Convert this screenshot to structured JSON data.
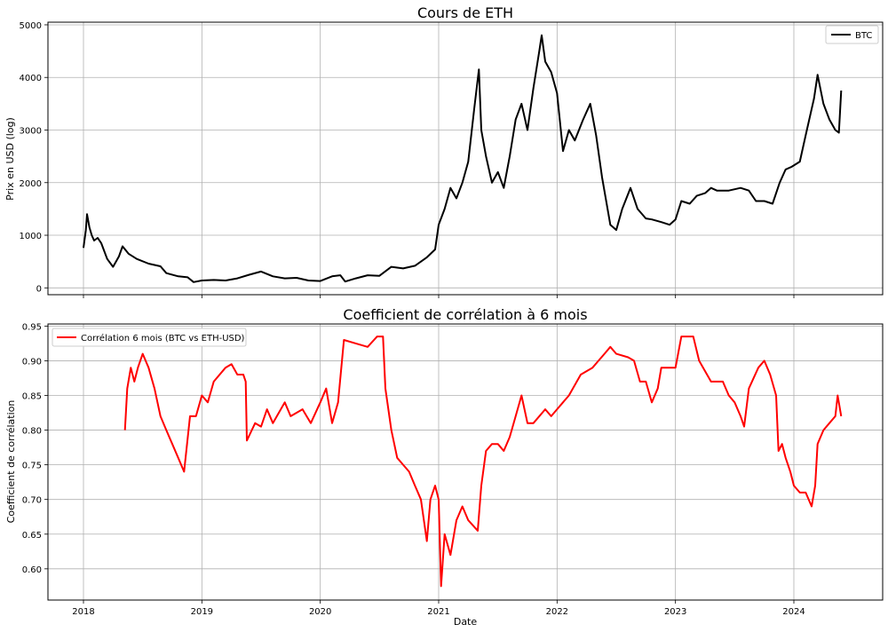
{
  "chart_data": [
    {
      "type": "line",
      "title": "Cours de ETH",
      "xlabel": "",
      "ylabel": "Prix en USD (log)",
      "xlim": [
        2017.7,
        2024.75
      ],
      "ylim": [
        -130,
        5050
      ],
      "yticks": [
        0,
        1000,
        2000,
        3000,
        4000,
        5000
      ],
      "grid": true,
      "legend": "top-right",
      "series": [
        {
          "name": "BTC",
          "color": "#000000",
          "points": [
            [
              2018.0,
              760
            ],
            [
              2018.02,
              1100
            ],
            [
              2018.03,
              1400
            ],
            [
              2018.05,
              1150
            ],
            [
              2018.07,
              1000
            ],
            [
              2018.09,
              900
            ],
            [
              2018.12,
              950
            ],
            [
              2018.15,
              850
            ],
            [
              2018.2,
              550
            ],
            [
              2018.25,
              400
            ],
            [
              2018.3,
              600
            ],
            [
              2018.33,
              790
            ],
            [
              2018.38,
              650
            ],
            [
              2018.45,
              550
            ],
            [
              2018.55,
              460
            ],
            [
              2018.65,
              410
            ],
            [
              2018.7,
              280
            ],
            [
              2018.8,
              220
            ],
            [
              2018.88,
              200
            ],
            [
              2018.93,
              110
            ],
            [
              2019.0,
              140
            ],
            [
              2019.1,
              150
            ],
            [
              2019.2,
              140
            ],
            [
              2019.3,
              180
            ],
            [
              2019.4,
              250
            ],
            [
              2019.5,
              310
            ],
            [
              2019.6,
              220
            ],
            [
              2019.7,
              180
            ],
            [
              2019.8,
              190
            ],
            [
              2019.9,
              140
            ],
            [
              2020.0,
              130
            ],
            [
              2020.1,
              220
            ],
            [
              2020.17,
              240
            ],
            [
              2020.21,
              120
            ],
            [
              2020.3,
              180
            ],
            [
              2020.4,
              240
            ],
            [
              2020.5,
              230
            ],
            [
              2020.6,
              400
            ],
            [
              2020.7,
              370
            ],
            [
              2020.8,
              420
            ],
            [
              2020.9,
              580
            ],
            [
              2020.97,
              730
            ],
            [
              2021.0,
              1200
            ],
            [
              2021.05,
              1500
            ],
            [
              2021.1,
              1900
            ],
            [
              2021.15,
              1700
            ],
            [
              2021.2,
              2000
            ],
            [
              2021.25,
              2400
            ],
            [
              2021.3,
              3400
            ],
            [
              2021.34,
              4150
            ],
            [
              2021.36,
              3000
            ],
            [
              2021.4,
              2500
            ],
            [
              2021.45,
              2000
            ],
            [
              2021.5,
              2200
            ],
            [
              2021.55,
              1900
            ],
            [
              2021.6,
              2500
            ],
            [
              2021.65,
              3200
            ],
            [
              2021.7,
              3500
            ],
            [
              2021.75,
              3000
            ],
            [
              2021.8,
              3800
            ],
            [
              2021.85,
              4500
            ],
            [
              2021.87,
              4800
            ],
            [
              2021.9,
              4300
            ],
            [
              2021.95,
              4100
            ],
            [
              2022.0,
              3700
            ],
            [
              2022.05,
              2600
            ],
            [
              2022.1,
              3000
            ],
            [
              2022.15,
              2800
            ],
            [
              2022.22,
              3200
            ],
            [
              2022.28,
              3500
            ],
            [
              2022.33,
              2900
            ],
            [
              2022.38,
              2100
            ],
            [
              2022.45,
              1200
            ],
            [
              2022.5,
              1100
            ],
            [
              2022.55,
              1500
            ],
            [
              2022.62,
              1900
            ],
            [
              2022.68,
              1500
            ],
            [
              2022.75,
              1320
            ],
            [
              2022.8,
              1300
            ],
            [
              2022.88,
              1250
            ],
            [
              2022.95,
              1200
            ],
            [
              2023.0,
              1300
            ],
            [
              2023.05,
              1650
            ],
            [
              2023.12,
              1600
            ],
            [
              2023.18,
              1750
            ],
            [
              2023.25,
              1800
            ],
            [
              2023.3,
              1900
            ],
            [
              2023.35,
              1850
            ],
            [
              2023.45,
              1850
            ],
            [
              2023.55,
              1900
            ],
            [
              2023.62,
              1850
            ],
            [
              2023.68,
              1650
            ],
            [
              2023.75,
              1650
            ],
            [
              2023.82,
              1600
            ],
            [
              2023.88,
              2000
            ],
            [
              2023.93,
              2250
            ],
            [
              2023.98,
              2300
            ],
            [
              2024.05,
              2400
            ],
            [
              2024.1,
              2900
            ],
            [
              2024.17,
              3600
            ],
            [
              2024.2,
              4050
            ],
            [
              2024.25,
              3500
            ],
            [
              2024.3,
              3200
            ],
            [
              2024.35,
              3000
            ],
            [
              2024.38,
              2950
            ],
            [
              2024.4,
              3750
            ]
          ]
        }
      ]
    },
    {
      "type": "line",
      "title": "Coefficient de corrélation à 6 mois",
      "xlabel": "Date",
      "ylabel": "Coefficient de corrélation",
      "xlim": [
        2017.7,
        2024.75
      ],
      "ylim": [
        0.555,
        0.953
      ],
      "yticks": [
        0.6,
        0.65,
        0.7,
        0.75,
        0.8,
        0.85,
        0.9,
        0.95
      ],
      "xticks": [
        2018,
        2019,
        2020,
        2021,
        2022,
        2023,
        2024
      ],
      "grid": true,
      "legend": "top-left",
      "series": [
        {
          "name": "Corrélation 6 mois (BTC vs ETH-USD)",
          "color": "#ff0000",
          "points": [
            [
              2018.35,
              0.8
            ],
            [
              2018.37,
              0.86
            ],
            [
              2018.4,
              0.89
            ],
            [
              2018.43,
              0.87
            ],
            [
              2018.46,
              0.89
            ],
            [
              2018.5,
              0.91
            ],
            [
              2018.55,
              0.89
            ],
            [
              2018.6,
              0.86
            ],
            [
              2018.65,
              0.82
            ],
            [
              2018.7,
              0.8
            ],
            [
              2018.75,
              0.78
            ],
            [
              2018.8,
              0.76
            ],
            [
              2018.85,
              0.74
            ],
            [
              2018.9,
              0.82
            ],
            [
              2018.95,
              0.82
            ],
            [
              2019.0,
              0.85
            ],
            [
              2019.05,
              0.84
            ],
            [
              2019.1,
              0.87
            ],
            [
              2019.2,
              0.89
            ],
            [
              2019.25,
              0.895
            ],
            [
              2019.3,
              0.88
            ],
            [
              2019.35,
              0.88
            ],
            [
              2019.37,
              0.87
            ],
            [
              2019.38,
              0.785
            ],
            [
              2019.45,
              0.81
            ],
            [
              2019.5,
              0.805
            ],
            [
              2019.55,
              0.83
            ],
            [
              2019.6,
              0.81
            ],
            [
              2019.7,
              0.84
            ],
            [
              2019.75,
              0.82
            ],
            [
              2019.85,
              0.83
            ],
            [
              2019.92,
              0.81
            ],
            [
              2020.0,
              0.84
            ],
            [
              2020.05,
              0.86
            ],
            [
              2020.1,
              0.81
            ],
            [
              2020.15,
              0.84
            ],
            [
              2020.2,
              0.93
            ],
            [
              2020.3,
              0.925
            ],
            [
              2020.4,
              0.92
            ],
            [
              2020.48,
              0.935
            ],
            [
              2020.53,
              0.935
            ],
            [
              2020.55,
              0.86
            ],
            [
              2020.6,
              0.8
            ],
            [
              2020.65,
              0.76
            ],
            [
              2020.7,
              0.75
            ],
            [
              2020.75,
              0.74
            ],
            [
              2020.8,
              0.72
            ],
            [
              2020.85,
              0.7
            ],
            [
              2020.9,
              0.64
            ],
            [
              2020.93,
              0.7
            ],
            [
              2020.97,
              0.72
            ],
            [
              2021.0,
              0.7
            ],
            [
              2021.02,
              0.575
            ],
            [
              2021.05,
              0.65
            ],
            [
              2021.1,
              0.62
            ],
            [
              2021.15,
              0.67
            ],
            [
              2021.2,
              0.69
            ],
            [
              2021.25,
              0.67
            ],
            [
              2021.33,
              0.655
            ],
            [
              2021.36,
              0.72
            ],
            [
              2021.4,
              0.77
            ],
            [
              2021.45,
              0.78
            ],
            [
              2021.5,
              0.78
            ],
            [
              2021.55,
              0.77
            ],
            [
              2021.6,
              0.79
            ],
            [
              2021.65,
              0.82
            ],
            [
              2021.7,
              0.85
            ],
            [
              2021.75,
              0.81
            ],
            [
              2021.8,
              0.81
            ],
            [
              2021.9,
              0.83
            ],
            [
              2021.95,
              0.82
            ],
            [
              2022.0,
              0.83
            ],
            [
              2022.05,
              0.84
            ],
            [
              2022.1,
              0.85
            ],
            [
              2022.2,
              0.88
            ],
            [
              2022.3,
              0.89
            ],
            [
              2022.35,
              0.9
            ],
            [
              2022.4,
              0.91
            ],
            [
              2022.45,
              0.92
            ],
            [
              2022.5,
              0.91
            ],
            [
              2022.6,
              0.905
            ],
            [
              2022.65,
              0.9
            ],
            [
              2022.7,
              0.87
            ],
            [
              2022.75,
              0.87
            ],
            [
              2022.8,
              0.84
            ],
            [
              2022.85,
              0.86
            ],
            [
              2022.88,
              0.89
            ],
            [
              2022.95,
              0.89
            ],
            [
              2023.0,
              0.89
            ],
            [
              2023.05,
              0.935
            ],
            [
              2023.15,
              0.935
            ],
            [
              2023.2,
              0.9
            ],
            [
              2023.3,
              0.87
            ],
            [
              2023.4,
              0.87
            ],
            [
              2023.45,
              0.85
            ],
            [
              2023.5,
              0.84
            ],
            [
              2023.55,
              0.82
            ],
            [
              2023.58,
              0.805
            ],
            [
              2023.62,
              0.86
            ],
            [
              2023.7,
              0.89
            ],
            [
              2023.75,
              0.9
            ],
            [
              2023.8,
              0.88
            ],
            [
              2023.85,
              0.85
            ],
            [
              2023.87,
              0.77
            ],
            [
              2023.9,
              0.78
            ],
            [
              2023.93,
              0.76
            ],
            [
              2023.97,
              0.74
            ],
            [
              2024.0,
              0.72
            ],
            [
              2024.05,
              0.71
            ],
            [
              2024.1,
              0.71
            ],
            [
              2024.15,
              0.69
            ],
            [
              2024.18,
              0.72
            ],
            [
              2024.2,
              0.78
            ],
            [
              2024.25,
              0.8
            ],
            [
              2024.3,
              0.81
            ],
            [
              2024.35,
              0.82
            ],
            [
              2024.37,
              0.85
            ],
            [
              2024.4,
              0.82
            ]
          ]
        }
      ]
    }
  ]
}
